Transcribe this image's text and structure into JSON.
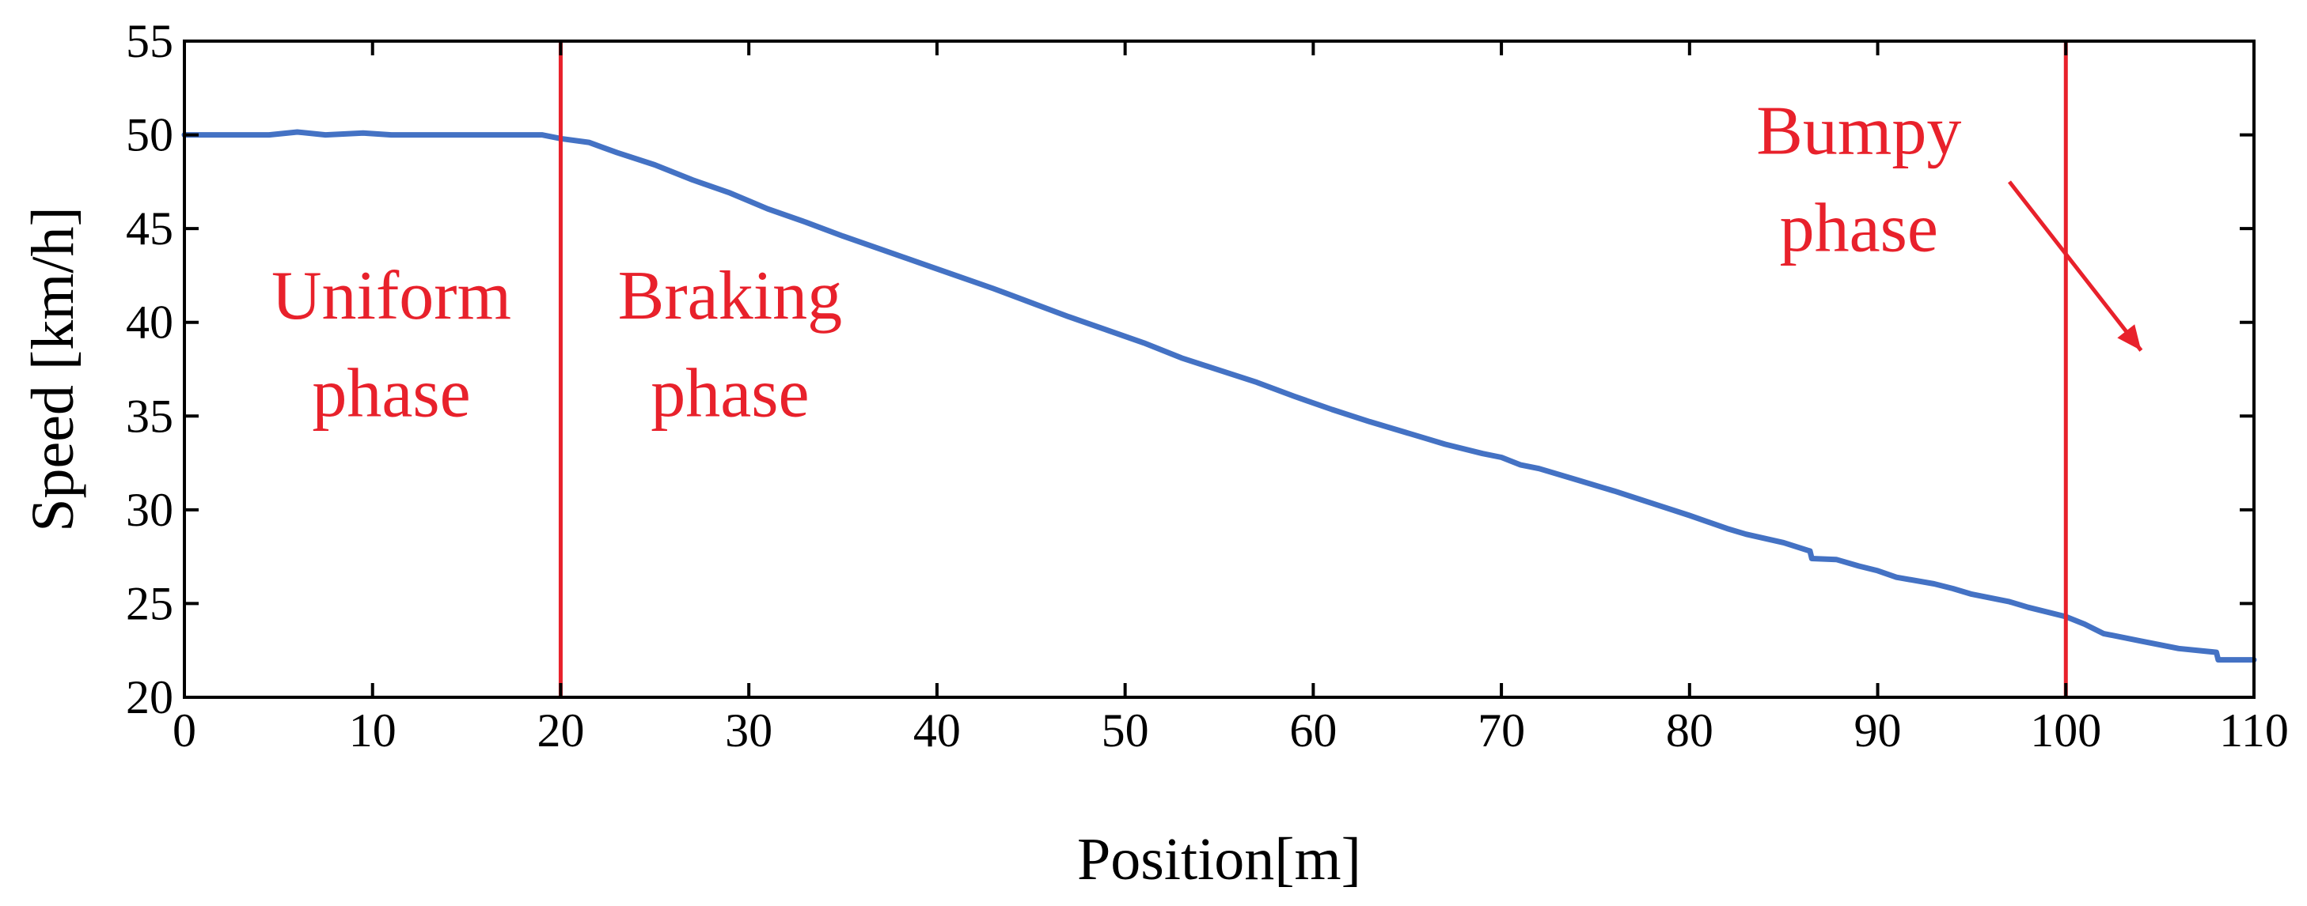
{
  "chart_data": {
    "type": "line",
    "xlabel": "Position[m]",
    "ylabel": "Speed [km/h]",
    "xlim": [
      0,
      110
    ],
    "ylim": [
      20,
      55
    ],
    "xticks": [
      0,
      10,
      20,
      30,
      40,
      50,
      60,
      70,
      80,
      90,
      100,
      110
    ],
    "yticks": [
      20,
      25,
      30,
      35,
      40,
      45,
      50,
      55
    ],
    "grid": false,
    "series": [
      {
        "color": "#4472C4",
        "x": [
          0,
          2,
          4.5,
          6,
          7.5,
          9.5,
          11,
          13,
          15,
          17,
          19,
          20,
          21.5,
          23,
          25,
          27,
          29,
          31,
          33,
          35,
          37,
          39,
          41,
          43,
          45,
          47,
          49,
          51,
          53,
          55,
          57,
          59,
          61,
          63,
          66,
          67,
          69,
          70,
          71,
          72,
          74,
          76,
          78,
          80,
          82,
          83,
          85,
          86.4,
          86.5,
          87.8,
          89,
          90,
          91,
          93,
          94,
          95,
          97,
          98,
          100,
          101,
          102,
          104,
          106,
          108,
          108.1,
          110
        ],
        "y": [
          50.0,
          50.0,
          50.0,
          50.15,
          50.0,
          50.1,
          50.0,
          50.0,
          50.0,
          50.0,
          50.0,
          49.8,
          49.6,
          49.05,
          48.4,
          47.6,
          46.9,
          46.05,
          45.35,
          44.6,
          43.9,
          43.2,
          42.5,
          41.8,
          41.05,
          40.3,
          39.6,
          38.9,
          38.1,
          37.45,
          36.8,
          36.05,
          35.35,
          34.7,
          33.8,
          33.5,
          33.0,
          32.8,
          32.4,
          32.2,
          31.6,
          31.0,
          30.35,
          29.7,
          29.0,
          28.7,
          28.25,
          27.8,
          27.4,
          27.35,
          27.0,
          26.75,
          26.4,
          26.05,
          25.8,
          25.5,
          25.1,
          24.8,
          24.3,
          23.9,
          23.4,
          23.0,
          22.6,
          22.4,
          22.0,
          22.0
        ]
      }
    ],
    "vlines": [
      {
        "x": 20,
        "color": "#E8212B"
      },
      {
        "x": 100,
        "color": "#E8212B"
      }
    ],
    "annotations": [
      {
        "lines": [
          "Uniform",
          "phase"
        ],
        "x": 11,
        "y": [
          40.2,
          35.0
        ],
        "color": "#E8212B"
      },
      {
        "lines": [
          "Braking",
          "phase"
        ],
        "x": 29,
        "y": [
          40.2,
          35.0
        ],
        "color": "#E8212B"
      },
      {
        "lines": [
          "Bumpy",
          "phase"
        ],
        "x": 89,
        "y": [
          49.0,
          43.8
        ],
        "color": "#E8212B"
      }
    ],
    "arrows": [
      {
        "from": [
          97,
          47.5
        ],
        "to": [
          104,
          38.5
        ],
        "color": "#E8212B"
      }
    ]
  }
}
